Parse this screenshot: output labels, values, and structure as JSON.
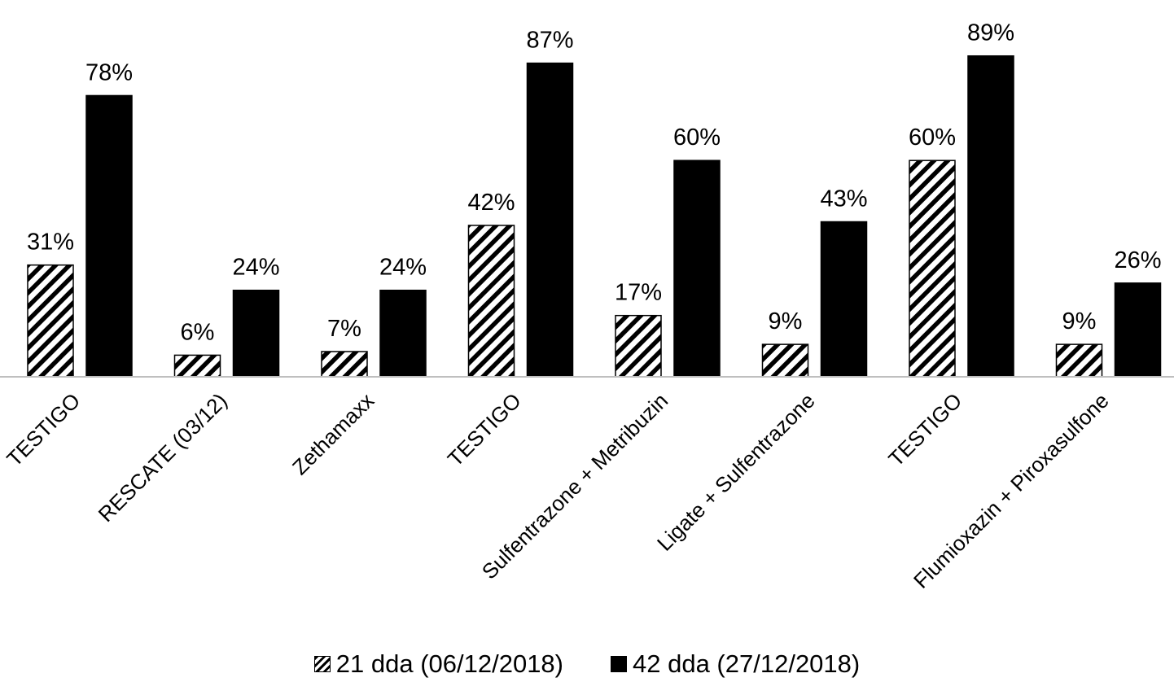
{
  "chart_data": {
    "type": "bar",
    "categories": [
      "TESTIGO",
      "RESCATE (03/12)",
      "Zethamaxx",
      "TESTIGO",
      "Sulfentrazone + Metribuzin",
      "Ligate + Sulfentrazone",
      "TESTIGO",
      "Flumioxazin + Piroxasulfone"
    ],
    "series": [
      {
        "name": "21 dda (06/12/2018)",
        "values": [
          31,
          6,
          7,
          42,
          17,
          9,
          60,
          9
        ],
        "labels": [
          "31%",
          "6%",
          "7%",
          "42%",
          "17%",
          "9%",
          "60%",
          "9%"
        ],
        "fill": "hatched"
      },
      {
        "name": "42 dda (27/12/2018)",
        "values": [
          78,
          24,
          24,
          87,
          60,
          43,
          89,
          26
        ],
        "labels": [
          "78%",
          "24%",
          "24%",
          "87%",
          "60%",
          "43%",
          "89%",
          "26%"
        ],
        "fill": "solid"
      }
    ],
    "title": "",
    "xlabel": "",
    "ylabel": "",
    "ylim": [
      0,
      100
    ],
    "grid": false,
    "legend": "bottom-center",
    "colors": {
      "bar": "#000000",
      "background": "#ffffff",
      "axis": "#bfbfbf"
    }
  }
}
